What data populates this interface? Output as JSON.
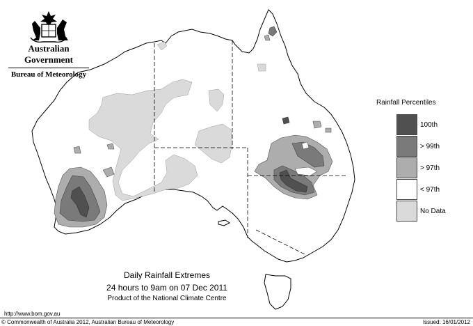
{
  "header": {
    "government": "Australian Government",
    "bureau": "Bureau of Meteorology",
    "logo_icon": "coat-of-arms-icon"
  },
  "legend": {
    "title": "Rainfall Percentiles",
    "items": [
      {
        "label": "100th",
        "color": "#505050"
      },
      {
        "label": "> 99th",
        "color": "#7a7a7a"
      },
      {
        "label": "> 97th",
        "color": "#adadad"
      },
      {
        "label": "< 97th",
        "color": "#ffffff"
      },
      {
        "label": "No Data",
        "color": "#dadada"
      }
    ]
  },
  "caption": {
    "title": "Daily Rainfall Extremes",
    "period": "24 hours to 9am on 07 Dec 2011",
    "product": "Product of the National Climate Centre"
  },
  "footer": {
    "url": "http://www.bom.gov.au",
    "copyright": "© Commonwealth of Australia 2012, Australian Bureau of Meteorology",
    "issued": "Issued: 16/01/2012"
  }
}
